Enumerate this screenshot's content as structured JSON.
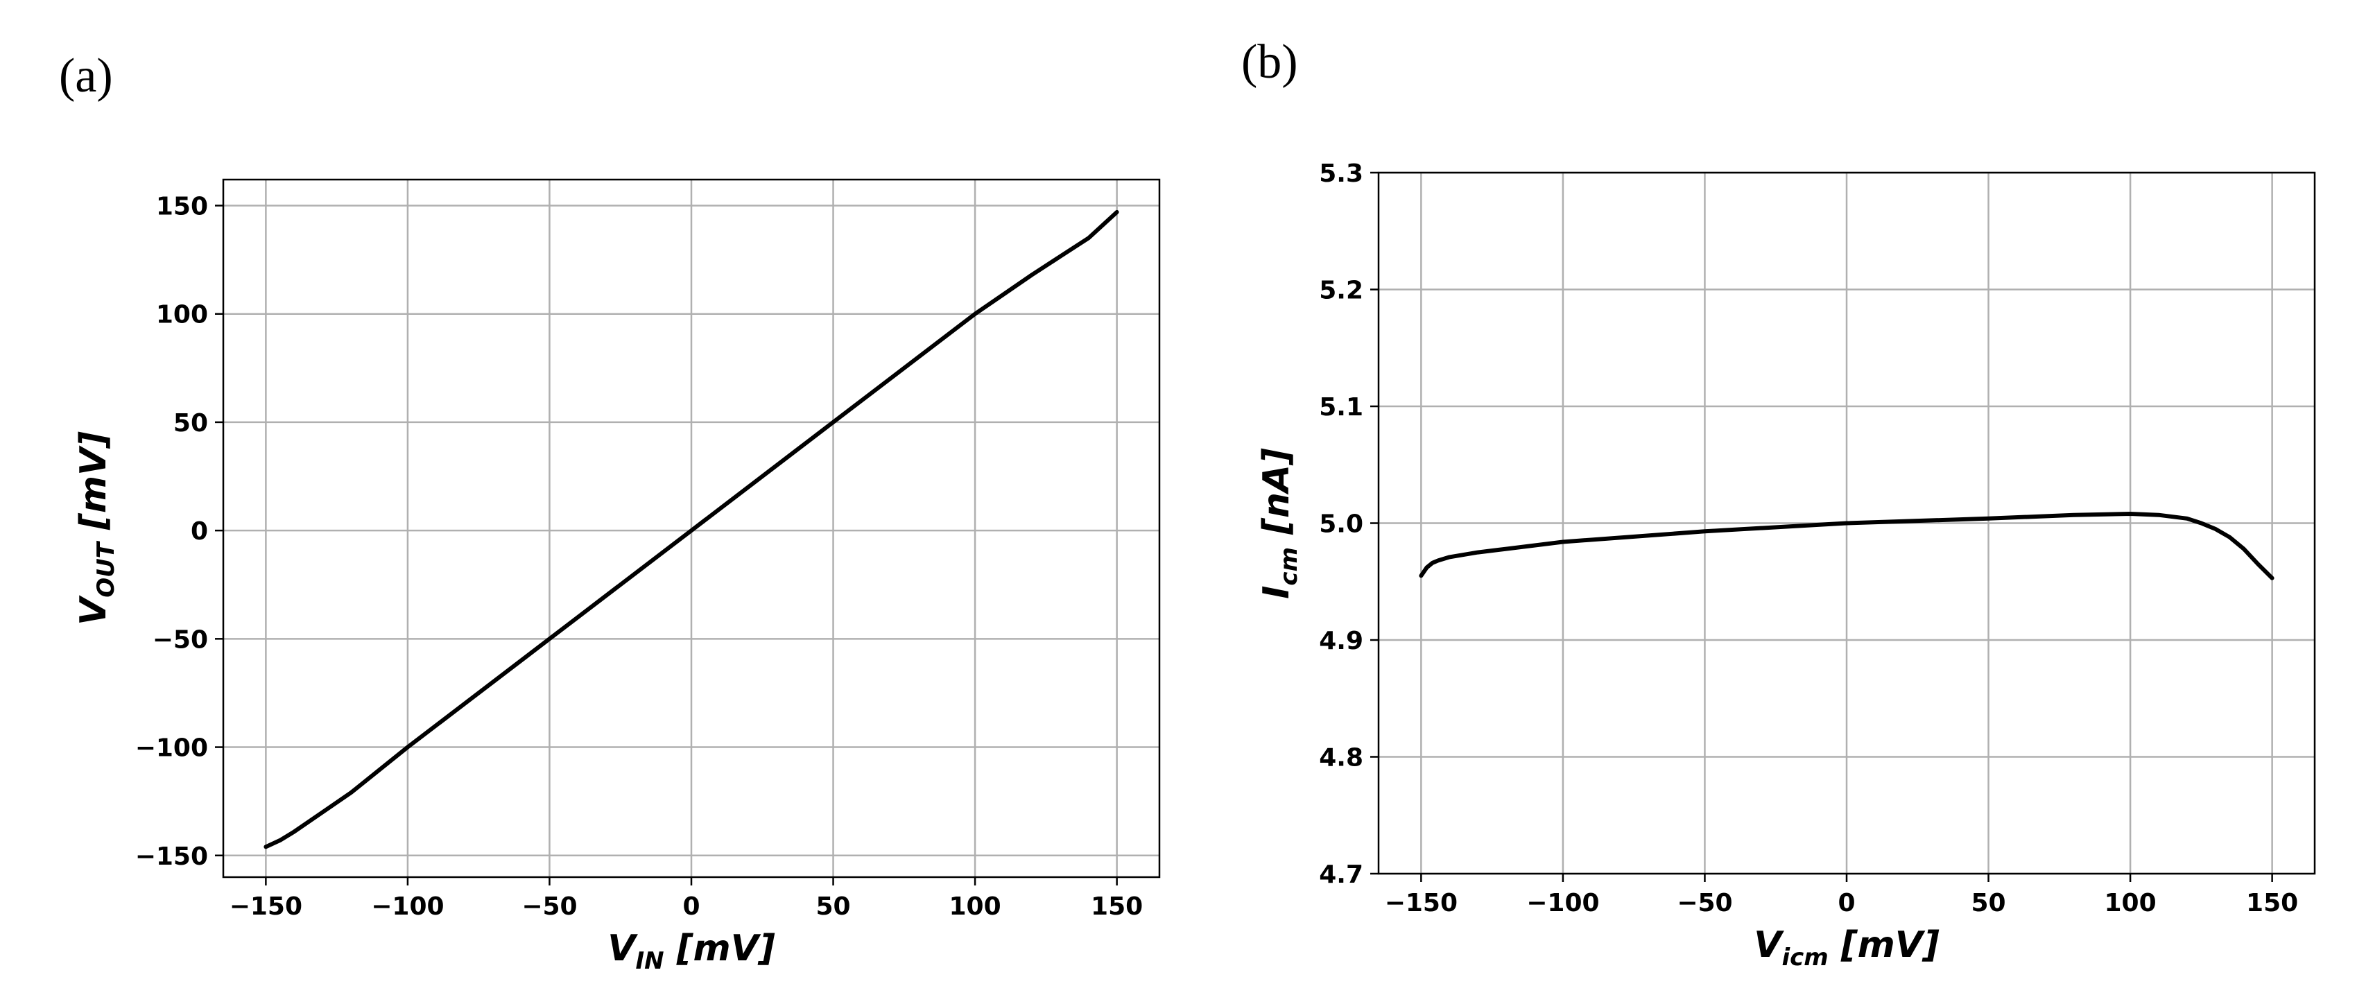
{
  "chart_data": [
    {
      "type": "line",
      "panel_label": "(a)",
      "title": "",
      "xlabel": {
        "main": "V",
        "sub": "IN",
        "unit": " [mV]"
      },
      "ylabel": {
        "main": "V",
        "sub": "OUT",
        "unit": " [mV]"
      },
      "xlim": [
        -165,
        165
      ],
      "ylim": [
        -160,
        162
      ],
      "xticks": [
        -150,
        -100,
        -50,
        0,
        50,
        100,
        150
      ],
      "xtick_labels": [
        "−150",
        "−100",
        "−50",
        "0",
        "50",
        "100",
        "150"
      ],
      "yticks": [
        -150,
        -100,
        -50,
        0,
        50,
        100,
        150
      ],
      "ytick_labels": [
        "−150",
        "−100",
        "−50",
        "0",
        "50",
        "100",
        "150"
      ],
      "grid": true,
      "series": [
        {
          "name": "V_OUT",
          "x": [
            -150,
            -145,
            -140,
            -130,
            -120,
            -100,
            -50,
            0,
            50,
            100,
            110,
            120,
            130,
            140,
            150
          ],
          "y": [
            -146,
            -143,
            -139,
            -130,
            -121,
            -100,
            -50,
            0,
            50,
            100,
            109,
            118,
            126.5,
            135,
            147
          ]
        }
      ]
    },
    {
      "type": "line",
      "panel_label": "(b)",
      "title": "",
      "xlabel": {
        "main": "V",
        "sub": "icm",
        "unit": " [mV]"
      },
      "ylabel": {
        "main": "I",
        "sub": "cm",
        "unit": " [nA]"
      },
      "xlim": [
        -165,
        165
      ],
      "ylim": [
        4.7,
        5.3
      ],
      "xticks": [
        -150,
        -100,
        -50,
        0,
        50,
        100,
        150
      ],
      "xtick_labels": [
        "−150",
        "−100",
        "−50",
        "0",
        "50",
        "100",
        "150"
      ],
      "yticks": [
        4.7,
        4.8,
        4.9,
        5.0,
        5.1,
        5.2,
        5.3
      ],
      "ytick_labels": [
        "4.7",
        "4.8",
        "4.9",
        "5.0",
        "5.1",
        "5.2",
        "5.3"
      ],
      "grid": true,
      "series": [
        {
          "name": "I_cm",
          "x": [
            -150,
            -148,
            -146,
            -144,
            -140,
            -130,
            -120,
            -100,
            -50,
            0,
            50,
            80,
            100,
            110,
            120,
            125,
            130,
            135,
            140,
            145,
            150
          ],
          "y": [
            4.955,
            4.962,
            4.966,
            4.968,
            4.971,
            4.975,
            4.978,
            4.984,
            4.993,
            5.0,
            5.004,
            5.007,
            5.008,
            5.007,
            5.004,
            5.0,
            4.995,
            4.988,
            4.978,
            4.965,
            4.953
          ]
        }
      ]
    }
  ]
}
